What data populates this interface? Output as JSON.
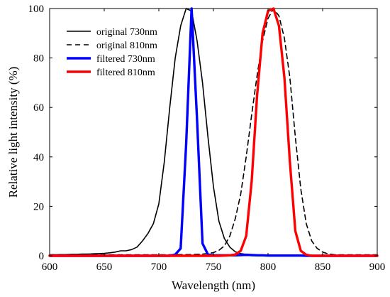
{
  "chart_data": {
    "type": "line",
    "xlabel": "Wavelength (nm)",
    "ylabel": "Relative light intensity (%)",
    "xlim": [
      600,
      900
    ],
    "ylim": [
      0,
      100
    ],
    "xticks": [
      "600",
      "650",
      "700",
      "750",
      "800",
      "850",
      "900"
    ],
    "yticks": [
      "0",
      "20",
      "40",
      "60",
      "80",
      "100"
    ],
    "grid": false,
    "legend_position": "top-left",
    "x": [
      600,
      605,
      610,
      615,
      620,
      625,
      630,
      635,
      640,
      645,
      650,
      655,
      660,
      665,
      670,
      675,
      680,
      685,
      690,
      695,
      700,
      705,
      710,
      715,
      720,
      725,
      730,
      735,
      740,
      745,
      750,
      755,
      760,
      765,
      770,
      775,
      780,
      785,
      790,
      795,
      800,
      805,
      810,
      815,
      820,
      825,
      830,
      835,
      840,
      845,
      850,
      855,
      860,
      865,
      870,
      875,
      880,
      885,
      890,
      895,
      900
    ],
    "series": [
      {
        "name": "original 730nm",
        "color": "#000000",
        "style": "solid",
        "values": [
          0.4,
          0.4,
          0.5,
          0.5,
          0.6,
          0.6,
          0.7,
          0.7,
          0.8,
          0.9,
          1.0,
          1.2,
          1.5,
          2.0,
          2.0,
          2.5,
          3.5,
          6.0,
          9.0,
          13.0,
          21.0,
          38.0,
          60.0,
          80.0,
          93.0,
          100.0,
          99.0,
          87.0,
          70.0,
          48.0,
          28.0,
          14.0,
          7.0,
          3.5,
          1.6,
          0.9,
          0.6,
          0.4,
          0.3,
          0.3,
          0.3,
          0.3,
          0.2,
          0.2,
          0.2,
          0.2,
          0.2,
          0.2,
          0.2,
          0.2,
          0.2,
          0.2,
          0.2,
          0.2,
          0.2,
          0.2,
          0.2,
          0.2,
          0.2,
          0.2,
          0.2
        ]
      },
      {
        "name": "original 810nm",
        "color": "#000000",
        "style": "dashed",
        "values": [
          0.4,
          0.4,
          0.4,
          0.4,
          0.4,
          0.4,
          0.4,
          0.4,
          0.4,
          0.4,
          0.4,
          0.4,
          0.4,
          0.4,
          0.4,
          0.4,
          0.4,
          0.4,
          0.4,
          0.4,
          0.4,
          0.4,
          0.4,
          0.5,
          0.5,
          0.5,
          0.5,
          0.6,
          0.7,
          0.9,
          1.3,
          2.2,
          4.0,
          8.0,
          15.0,
          25.0,
          40.0,
          57.0,
          73.0,
          87.0,
          96.0,
          100.0,
          97.0,
          88.0,
          72.0,
          48.0,
          27.0,
          13.0,
          6.0,
          3.0,
          1.5,
          0.8,
          0.5,
          0.4,
          0.4,
          0.4,
          0.4,
          0.4,
          0.4,
          0.4,
          0.4
        ]
      },
      {
        "name": "filtered 730nm",
        "color": "#0000ff",
        "style": "solid",
        "values": [
          0,
          0,
          0,
          0,
          0,
          0,
          0,
          0,
          0,
          0,
          0,
          0,
          0,
          0,
          0,
          0,
          0,
          0,
          0,
          0,
          0,
          0,
          0,
          0.5,
          3.0,
          45.0,
          100.0,
          55.0,
          5.0,
          0.5,
          0.2,
          0.2,
          0.2,
          0.2,
          0.2,
          0.3,
          0.4,
          0.3,
          0.2,
          0.2,
          0.1,
          0.1,
          0.1,
          0.1,
          0.1,
          0.1,
          0.1,
          0,
          0,
          0,
          0,
          0,
          0,
          0,
          0,
          0,
          0,
          0,
          0,
          0,
          0
        ]
      },
      {
        "name": "filtered 810nm",
        "color": "#ff0000",
        "style": "solid",
        "values": [
          0,
          0,
          0,
          0,
          0,
          0,
          0,
          0,
          0,
          0,
          0,
          0,
          0,
          0,
          0,
          0,
          0,
          0,
          0,
          0,
          0,
          0,
          0,
          0,
          0,
          0,
          0,
          0,
          0,
          0,
          0,
          0,
          0.1,
          0.2,
          0.5,
          2.0,
          8.0,
          30.0,
          65.0,
          90.0,
          99.0,
          100.0,
          93.0,
          72.0,
          38.0,
          10.0,
          2.0,
          0.4,
          0,
          0,
          0,
          0,
          0,
          0,
          0,
          0,
          0,
          0,
          0,
          0,
          0
        ]
      }
    ]
  }
}
